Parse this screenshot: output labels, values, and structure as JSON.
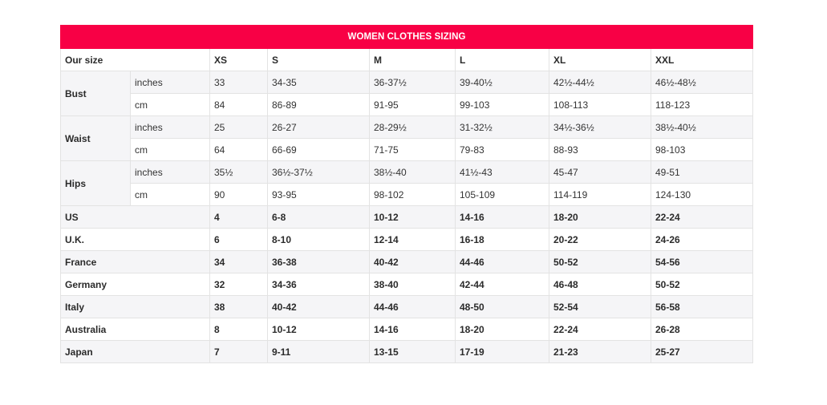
{
  "title": "WOMEN CLOTHES SIZING",
  "header": {
    "label": "Our size",
    "sizes": [
      "XS",
      "S",
      "M",
      "L",
      "XL",
      "XXL"
    ]
  },
  "measurements": [
    {
      "name": "Bust",
      "rows": [
        {
          "unit": "inches",
          "values": [
            "33",
            "34-35",
            "36-37½",
            "39-40½",
            "42½-44½",
            "46½-48½"
          ]
        },
        {
          "unit": "cm",
          "values": [
            "84",
            "86-89",
            "91-95",
            "99-103",
            "108-113",
            "118-123"
          ]
        }
      ]
    },
    {
      "name": "Waist",
      "rows": [
        {
          "unit": "inches",
          "values": [
            "25",
            "26-27",
            "28-29½",
            "31-32½",
            "34½-36½",
            "38½-40½"
          ]
        },
        {
          "unit": "cm",
          "values": [
            "64",
            "66-69",
            "71-75",
            "79-83",
            "88-93",
            "98-103"
          ]
        }
      ]
    },
    {
      "name": "Hips",
      "rows": [
        {
          "unit": "inches",
          "values": [
            "35½",
            "36½-37½",
            "38½-40",
            "41½-43",
            "45-47",
            "49-51"
          ]
        },
        {
          "unit": "cm",
          "values": [
            "90",
            "93-95",
            "98-102",
            "105-109",
            "114-119",
            "124-130"
          ]
        }
      ]
    }
  ],
  "countries": [
    {
      "name": "US",
      "values": [
        "4",
        "6-8",
        "10-12",
        "14-16",
        "18-20",
        "22-24"
      ]
    },
    {
      "name": "U.K.",
      "values": [
        "6",
        "8-10",
        "12-14",
        "16-18",
        "20-22",
        "24-26"
      ]
    },
    {
      "name": "France",
      "values": [
        "34",
        "36-38",
        "40-42",
        "44-46",
        "50-52",
        "54-56"
      ]
    },
    {
      "name": "Germany",
      "values": [
        "32",
        "34-36",
        "38-40",
        "42-44",
        "46-48",
        "50-52"
      ]
    },
    {
      "name": "Italy",
      "values": [
        "38",
        "40-42",
        "44-46",
        "48-50",
        "52-54",
        "56-58"
      ]
    },
    {
      "name": "Australia",
      "values": [
        "8",
        "10-12",
        "14-16",
        "18-20",
        "22-24",
        "26-28"
      ]
    },
    {
      "name": "Japan",
      "values": [
        "7",
        "9-11",
        "13-15",
        "17-19",
        "21-23",
        "25-27"
      ]
    }
  ]
}
